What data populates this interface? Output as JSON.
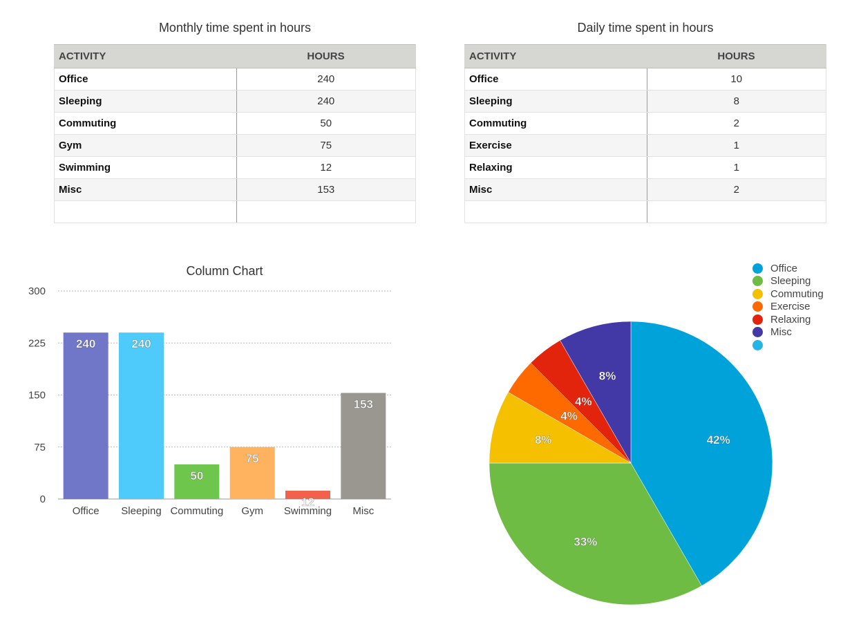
{
  "tables": {
    "monthly": {
      "title": "Monthly time spent in hours",
      "headers": [
        "ACTIVITY",
        "HOURS"
      ],
      "rows": [
        {
          "activity": "Office",
          "hours": "240"
        },
        {
          "activity": "Sleeping",
          "hours": "240"
        },
        {
          "activity": "Commuting",
          "hours": "50"
        },
        {
          "activity": "Gym",
          "hours": "75"
        },
        {
          "activity": "Swimming",
          "hours": "12"
        },
        {
          "activity": "Misc",
          "hours": "153"
        },
        {
          "activity": "",
          "hours": ""
        }
      ]
    },
    "daily": {
      "title": "Daily time spent in hours",
      "headers": [
        "ACTIVITY",
        "HOURS"
      ],
      "rows": [
        {
          "activity": "Office",
          "hours": "10"
        },
        {
          "activity": "Sleeping",
          "hours": "8"
        },
        {
          "activity": "Commuting",
          "hours": "2"
        },
        {
          "activity": "Exercise",
          "hours": "1"
        },
        {
          "activity": "Relaxing",
          "hours": "1"
        },
        {
          "activity": "Misc",
          "hours": "2"
        },
        {
          "activity": "",
          "hours": ""
        }
      ]
    }
  },
  "chart_data": [
    {
      "type": "bar",
      "title": "Column Chart",
      "categories": [
        "Office",
        "Sleeping",
        "Commuting",
        "Gym",
        "Swimming",
        "Misc"
      ],
      "values": [
        240,
        240,
        50,
        75,
        12,
        153
      ],
      "value_labels": [
        "240",
        "240",
        "50",
        "75",
        "12",
        "153"
      ],
      "colors": [
        "#7077c9",
        "#4fcbfb",
        "#6fc64d",
        "#ffb35e",
        "#f1614b",
        "#9a9690"
      ],
      "ylim": [
        0,
        300
      ],
      "yticks": [
        0,
        75,
        150,
        225,
        300
      ],
      "ytick_labels": [
        "0",
        "75",
        "150",
        "225",
        "300"
      ],
      "grid": true,
      "xlabel": "",
      "ylabel": ""
    },
    {
      "type": "pie",
      "title": "",
      "labels": [
        "Office",
        "Sleeping",
        "Commuting",
        "Exercise",
        "Relaxing",
        "Misc"
      ],
      "values": [
        10,
        8,
        2,
        1,
        1,
        2
      ],
      "pct_labels": [
        "42%",
        "33%",
        "8%",
        "4%",
        "4%",
        "8%"
      ],
      "colors": [
        "#00a2da",
        "#6fbc45",
        "#f5c000",
        "#ff6a00",
        "#e2240c",
        "#4239a6"
      ],
      "legend_position": "top-right",
      "legend_extra_color": "#24b4e6"
    }
  ]
}
